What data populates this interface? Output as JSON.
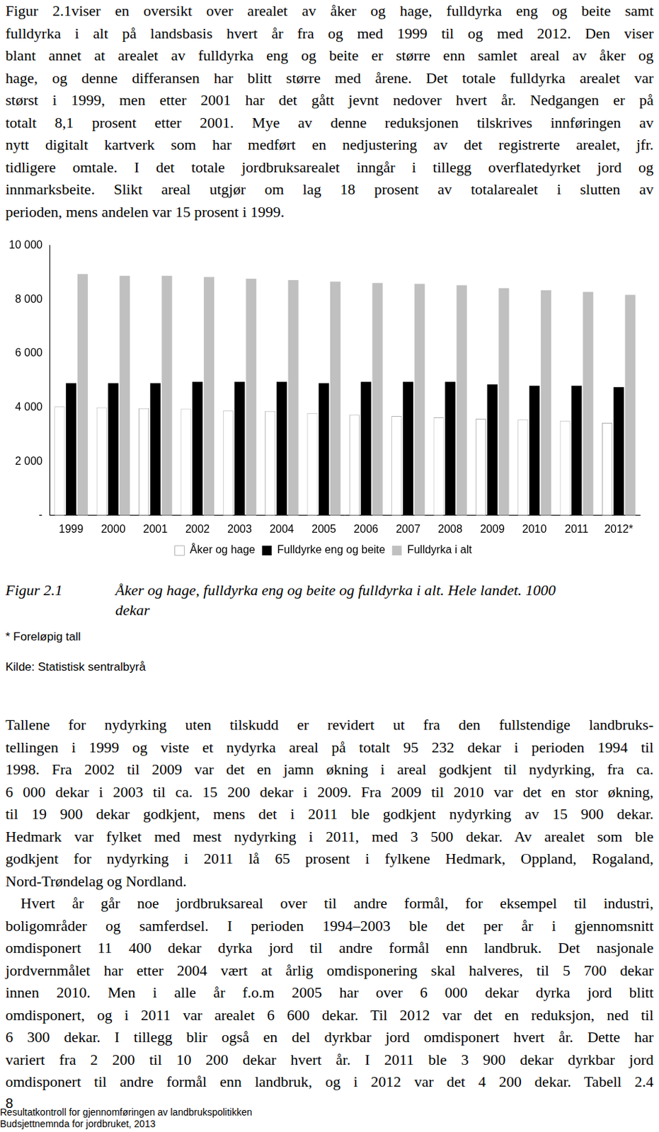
{
  "intro": [
    "Figur 2.1viser en oversikt over arealet av åker og hage, fulldyrka eng og beite samt",
    "fulldyrka i alt på landsbasis hvert år fra og med 1999 til og med 2012. Den viser",
    "blant annet at arealet av fulldyrka eng og beite er større enn samlet areal av åker og",
    "hage, og denne differansen har blitt større med årene. Det totale fulldyrka arealet var",
    "størst i 1999, men etter 2001 har det gått jevnt nedover hvert år. Nedgangen er på",
    "totalt 8,1 prosent etter 2001. Mye av denne reduksjonen tilskrives innføringen av",
    "nytt digitalt kartverk som har medført en nedjustering av det registrerte arealet, jfr.",
    "tidligere omtale. I det totale jordbruksarealet inngår i tillegg overflatedyrket jord og",
    "innmarksbeite. Slikt areal utgjør om lag 18 prosent av totalarealet i slutten av",
    "perioden, mens andelen var 15 prosent i 1999."
  ],
  "chart_data": {
    "type": "bar",
    "categories": [
      "1999",
      "2000",
      "2001",
      "2002",
      "2003",
      "2004",
      "2005",
      "2006",
      "2007",
      "2008",
      "2009",
      "2010",
      "2011",
      "2012*"
    ],
    "series": [
      {
        "name": "Åker og hage",
        "color": "#ffffff",
        "values": [
          4030,
          4000,
          3970,
          3950,
          3880,
          3870,
          3790,
          3730,
          3680,
          3630,
          3580,
          3550,
          3500,
          3430
        ]
      },
      {
        "name": "Fulldyrke eng og beite",
        "color": "#000000",
        "values": [
          4900,
          4900,
          4900,
          4950,
          4950,
          4950,
          4900,
          4950,
          4950,
          4950,
          4850,
          4800,
          4800,
          4750
        ]
      },
      {
        "name": "Fulldyrka i alt",
        "color": "#c0c0c0",
        "values": [
          8940,
          8880,
          8880,
          8830,
          8770,
          8720,
          8660,
          8610,
          8580,
          8530,
          8420,
          8340,
          8280,
          8170
        ]
      }
    ],
    "ylim": [
      0,
      10000
    ],
    "yticks": [
      {
        "value": 0,
        "label": "-"
      },
      {
        "value": 2000,
        "label": "2 000"
      },
      {
        "value": 4000,
        "label": "4 000"
      },
      {
        "value": 6000,
        "label": "6 000"
      },
      {
        "value": 8000,
        "label": "8 000"
      },
      {
        "value": 10000,
        "label": "10 000"
      }
    ],
    "grid": false,
    "legend": "bottom"
  },
  "caption": {
    "number": "Figur 2.1",
    "lines": [
      "Åker og hage, fulldyrka eng og beite og fulldyrka i alt. Hele landet. 1000",
      "dekar"
    ]
  },
  "notes": [
    "* Foreløpig tall",
    "Kilde: Statistisk sentralbyrå"
  ],
  "body": [
    [
      "Tallene for nydyrking uten tilskudd er revidert ut fra den fullstendige landbruks-",
      "tellingen i 1999 og viste et nydyrka areal på totalt 95 232 dekar i perioden 1994 til",
      "1998. Fra 2002 til 2009 var det en jamn økning i areal godkjent til nydyrking, fra ca.",
      "6 000 dekar i 2003 til ca. 15 200 dekar i 2009. Fra 2009 til 2010 var det en stor økning,",
      "til 19 900 dekar godkjent, mens det i 2011 ble godkjent nydyrking av 15 900 dekar.",
      "Hedmark var fylket med mest nydyrking i 2011, med 3 500 dekar. Av arealet som ble",
      "godkjent for nydyrking i 2011 lå 65 prosent i fylkene Hedmark, Oppland, Rogaland,",
      "Nord-Trøndelag og Nordland."
    ],
    [
      "Hvert år går noe jordbruksareal over til andre formål, for eksempel til industri,",
      "boligområder og samferdsel. I perioden 1994–2003 ble det per år i gjennomsnitt",
      "omdisponert 11 400 dekar dyrka jord til andre formål enn landbruk. Det nasjonale",
      "jordvernmålet har etter 2004 vært at årlig omdisponering skal halveres, til 5 700 dekar",
      "innen 2010. Men i alle år f.o.m 2005 har over 6 000 dekar dyrka jord blitt",
      "omdisponert, og i 2011 var arealet 6 600 dekar. Til 2012 var det en reduksjon, ned til",
      "6 300 dekar. I tillegg blir også en del dyrkbar jord omdisponert hvert år. Dette har",
      "variert fra 2 200 til 10 200 dekar hvert år. I 2011 ble 3 900 dekar dyrkbar jord",
      "omdisponert til andre formål enn landbruk, og i 2012 var det 4 200 dekar. Tabell 2.4"
    ]
  ],
  "page_number": 8,
  "footer": [
    "Resultatkontroll for gjennomføringen av landbrukspolitikken",
    "Budsjettnemnda for jordbruket, 2013"
  ]
}
